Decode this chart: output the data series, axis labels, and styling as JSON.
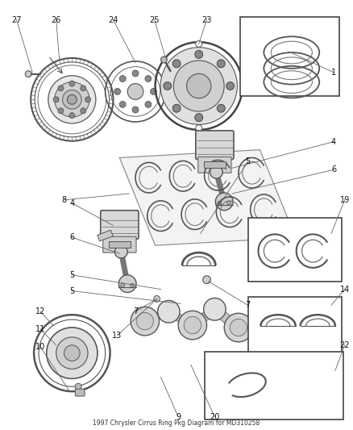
{
  "title": "1997 Chrysler Cirrus Ring Pkg Diagram for MD310258",
  "bg_color": "#ffffff",
  "line_color": "#666666",
  "box_color": "#333333",
  "text_color": "#111111",
  "figsize": [
    4.38,
    5.33
  ],
  "dpi": 100
}
